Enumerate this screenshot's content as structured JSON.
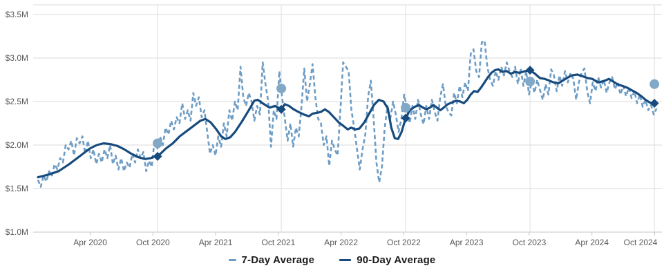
{
  "chart_data": {
    "type": "line",
    "title": "",
    "xlabel": "",
    "ylabel": "",
    "ylim": [
      1.0,
      3.5
    ],
    "grid": "horizontal",
    "legend_position": "bottom-center",
    "y_ticks": [
      {
        "v": 3.5,
        "label": "$3.5M"
      },
      {
        "v": 3.0,
        "label": "$3.0M"
      },
      {
        "v": 2.5,
        "label": "$2.5M"
      },
      {
        "v": 2.0,
        "label": "$2.0M"
      },
      {
        "v": 1.5,
        "label": "$1.5M"
      },
      {
        "v": 1.0,
        "label": "$1.0M"
      }
    ],
    "x_axis": {
      "start_month": "2019-11",
      "months_total": 59.5,
      "major_ticks": [
        {
          "m": 5,
          "label": "Apr 2020"
        },
        {
          "m": 11,
          "label": "Oct 2020"
        },
        {
          "m": 17,
          "label": "Apr 2021"
        },
        {
          "m": 23,
          "label": "Oct 2021"
        },
        {
          "m": 29,
          "label": "Apr 2022"
        },
        {
          "m": 35,
          "label": "Oct 2022"
        },
        {
          "m": 41,
          "label": "Apr 2023"
        },
        {
          "m": 47,
          "label": "Oct 2023"
        },
        {
          "m": 53,
          "label": "Apr 2024"
        },
        {
          "m": 59,
          "label": "Oct 2024"
        }
      ]
    },
    "series": [
      {
        "name": "7-Day Average",
        "style": "dashed",
        "color": "#6d9cc4",
        "start_m": 0,
        "step_m": 0.2654,
        "values": [
          1.6,
          1.52,
          1.65,
          1.58,
          1.7,
          1.65,
          1.78,
          1.72,
          1.85,
          1.8,
          2.0,
          1.95,
          2.05,
          1.88,
          2.08,
          2.02,
          2.1,
          1.9,
          2.05,
          1.85,
          1.95,
          1.78,
          1.9,
          1.8,
          1.95,
          1.85,
          2.0,
          1.78,
          1.88,
          1.72,
          1.85,
          1.7,
          1.8,
          1.74,
          1.9,
          1.8,
          1.95,
          1.85,
          1.92,
          1.7,
          1.82,
          1.75,
          2.05,
          1.95,
          2.1,
          2.0,
          2.2,
          2.12,
          2.28,
          2.18,
          2.32,
          2.25,
          2.48,
          2.3,
          2.4,
          2.28,
          2.6,
          2.45,
          2.55,
          2.32,
          2.4,
          2.15,
          1.9,
          2.0,
          1.88,
          2.1,
          1.98,
          2.25,
          2.1,
          2.4,
          2.28,
          2.5,
          2.4,
          2.9,
          2.55,
          2.45,
          2.6,
          2.5,
          2.28,
          2.45,
          2.35,
          2.95,
          2.7,
          2.5,
          1.98,
          2.4,
          2.3,
          2.85,
          2.55,
          2.3,
          2.05,
          2.25,
          1.98,
          2.2,
          2.1,
          2.45,
          2.88,
          2.5,
          2.7,
          2.93,
          2.55,
          2.3,
          2.25,
          2.0,
          2.1,
          1.76,
          2.05,
          1.95,
          1.88,
          2.4,
          2.95,
          2.9,
          2.85,
          2.4,
          2.2,
          1.95,
          1.72,
          1.95,
          2.12,
          2.55,
          2.74,
          2.31,
          1.8,
          1.57,
          1.75,
          2.2,
          2.45,
          2.3,
          2.5,
          2.35,
          2.15,
          2.3,
          2.58,
          2.43,
          2.25,
          2.45,
          2.3,
          2.52,
          2.35,
          2.24,
          2.45,
          2.3,
          2.52,
          2.38,
          2.28,
          2.55,
          2.7,
          2.45,
          2.38,
          2.34,
          2.6,
          2.48,
          2.68,
          2.55,
          2.72,
          2.62,
          3.05,
          3.1,
          2.85,
          2.78,
          3.18,
          3.2,
          2.9,
          2.75,
          2.68,
          2.85,
          2.75,
          2.9,
          2.8,
          2.95,
          2.85,
          2.78,
          2.9,
          2.7,
          2.88,
          2.68,
          2.85,
          2.58,
          2.73,
          2.6,
          2.75,
          2.63,
          2.52,
          2.7,
          2.58,
          2.87,
          2.8,
          2.62,
          2.8,
          2.68,
          2.85,
          2.72,
          2.83,
          2.76,
          2.52,
          2.72,
          2.83,
          2.88,
          2.62,
          2.48,
          2.72,
          2.62,
          2.78,
          2.66,
          2.75,
          2.6,
          2.72,
          2.78,
          2.64,
          2.72,
          2.58,
          2.68,
          2.56,
          2.66,
          2.54,
          2.62,
          2.48,
          2.58,
          2.44,
          2.52,
          2.4,
          2.46,
          2.35,
          2.42
        ]
      },
      {
        "name": "90-Day Average",
        "style": "solid",
        "color": "#174b7d",
        "points": [
          [
            0,
            1.63
          ],
          [
            0.99,
            1.66
          ],
          [
            1.98,
            1.7
          ],
          [
            2.98,
            1.78
          ],
          [
            3.97,
            1.87
          ],
          [
            4.96,
            1.96
          ],
          [
            5.62,
            2.0
          ],
          [
            6.28,
            2.02
          ],
          [
            6.94,
            2.01
          ],
          [
            7.61,
            1.99
          ],
          [
            8.27,
            1.95
          ],
          [
            8.93,
            1.9
          ],
          [
            9.59,
            1.86
          ],
          [
            10.25,
            1.84
          ],
          [
            10.78,
            1.85
          ],
          [
            11.18,
            1.87
          ],
          [
            11.44,
            1.88
          ],
          [
            11.71,
            1.9
          ],
          [
            12.24,
            1.96
          ],
          [
            12.9,
            2.02
          ],
          [
            13.56,
            2.1
          ],
          [
            14.22,
            2.16
          ],
          [
            14.88,
            2.22
          ],
          [
            15.54,
            2.28
          ],
          [
            16.01,
            2.3
          ],
          [
            16.53,
            2.26
          ],
          [
            17.06,
            2.18
          ],
          [
            17.53,
            2.1
          ],
          [
            17.92,
            2.07
          ],
          [
            18.39,
            2.09
          ],
          [
            18.85,
            2.15
          ],
          [
            19.51,
            2.27
          ],
          [
            20.17,
            2.4
          ],
          [
            20.7,
            2.51
          ],
          [
            21.03,
            2.52
          ],
          [
            21.49,
            2.48
          ],
          [
            22.16,
            2.43
          ],
          [
            22.69,
            2.45
          ],
          [
            23.28,
            2.41
          ],
          [
            23.61,
            2.47
          ],
          [
            24.01,
            2.45
          ],
          [
            24.47,
            2.41
          ],
          [
            24.93,
            2.38
          ],
          [
            25.46,
            2.35
          ],
          [
            25.93,
            2.33
          ],
          [
            26.26,
            2.36
          ],
          [
            26.65,
            2.37
          ],
          [
            27.05,
            2.38
          ],
          [
            27.45,
            2.41
          ],
          [
            27.84,
            2.38
          ],
          [
            28.31,
            2.32
          ],
          [
            28.77,
            2.26
          ],
          [
            29.23,
            2.22
          ],
          [
            29.63,
            2.18
          ],
          [
            29.96,
            2.2
          ],
          [
            30.36,
            2.18
          ],
          [
            30.75,
            2.19
          ],
          [
            31.22,
            2.26
          ],
          [
            31.68,
            2.36
          ],
          [
            32.14,
            2.46
          ],
          [
            32.61,
            2.52
          ],
          [
            33.07,
            2.5
          ],
          [
            33.47,
            2.42
          ],
          [
            33.8,
            2.2
          ],
          [
            34.13,
            2.08
          ],
          [
            34.46,
            2.07
          ],
          [
            34.79,
            2.15
          ],
          [
            35.18,
            2.31
          ],
          [
            35.58,
            2.4
          ],
          [
            36.05,
            2.44
          ],
          [
            36.44,
            2.46
          ],
          [
            36.84,
            2.43
          ],
          [
            37.17,
            2.41
          ],
          [
            37.5,
            2.43
          ],
          [
            37.83,
            2.46
          ],
          [
            38.16,
            2.43
          ],
          [
            38.49,
            2.4
          ],
          [
            38.82,
            2.43
          ],
          [
            39.22,
            2.47
          ],
          [
            39.62,
            2.49
          ],
          [
            40.01,
            2.51
          ],
          [
            40.41,
            2.5
          ],
          [
            40.74,
            2.48
          ],
          [
            41.07,
            2.52
          ],
          [
            41.4,
            2.58
          ],
          [
            41.73,
            2.62
          ],
          [
            42.06,
            2.61
          ],
          [
            42.39,
            2.66
          ],
          [
            42.72,
            2.72
          ],
          [
            43.05,
            2.78
          ],
          [
            43.39,
            2.83
          ],
          [
            43.72,
            2.86
          ],
          [
            44.05,
            2.87
          ],
          [
            44.44,
            2.84
          ],
          [
            44.84,
            2.85
          ],
          [
            45.24,
            2.82
          ],
          [
            45.63,
            2.84
          ],
          [
            46.1,
            2.83
          ],
          [
            46.63,
            2.85
          ],
          [
            47.08,
            2.86
          ],
          [
            47.55,
            2.82
          ],
          [
            48.02,
            2.77
          ],
          [
            48.48,
            2.76
          ],
          [
            48.94,
            2.74
          ],
          [
            49.34,
            2.72
          ],
          [
            49.8,
            2.71
          ],
          [
            50.2,
            2.74
          ],
          [
            50.6,
            2.77
          ],
          [
            51.06,
            2.8
          ],
          [
            51.59,
            2.81
          ],
          [
            52.12,
            2.79
          ],
          [
            52.58,
            2.77
          ],
          [
            53.04,
            2.76
          ],
          [
            53.44,
            2.73
          ],
          [
            53.66,
            2.72
          ],
          [
            54.23,
            2.74
          ],
          [
            54.63,
            2.76
          ],
          [
            55.03,
            2.73
          ],
          [
            55.42,
            2.7
          ],
          [
            55.89,
            2.68
          ],
          [
            56.35,
            2.66
          ],
          [
            56.81,
            2.63
          ],
          [
            57.27,
            2.6
          ],
          [
            57.74,
            2.56
          ],
          [
            58.13,
            2.52
          ],
          [
            58.53,
            2.49
          ],
          [
            58.86,
            2.47
          ],
          [
            59.19,
            2.49
          ]
        ]
      }
    ],
    "annual_markers": {
      "circle_color": "#82a8c8",
      "diamond_color": "#174b7d",
      "points": [
        {
          "date": "2020-10",
          "m": 11.44,
          "circle": 2.02,
          "diamond": 1.87
        },
        {
          "date": "2021-10",
          "m": 23.28,
          "circle": 2.65,
          "diamond": 2.41
        },
        {
          "date": "2022-10",
          "m": 35.18,
          "circle": 2.43,
          "diamond": 2.31
        },
        {
          "date": "2023-10",
          "m": 47.08,
          "circle": 2.73,
          "diamond": 2.86
        },
        {
          "date": "2024-10",
          "m": 58.98,
          "circle": 2.7,
          "diamond": 2.48
        }
      ]
    }
  },
  "colors": {
    "grid": "#d9d9d9",
    "axis": "#c6c6c6",
    "guide": "#dedede",
    "tick_label": "#595959",
    "legend_text": "#1c1c1c",
    "background": "#ffffff"
  }
}
